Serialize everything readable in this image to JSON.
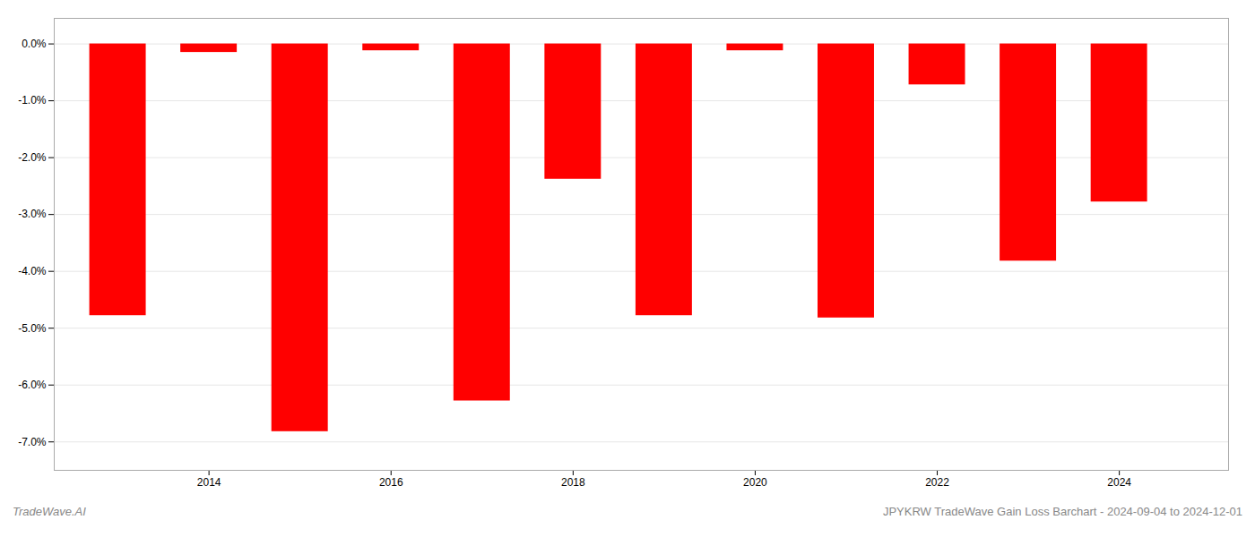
{
  "chart_data": {
    "type": "bar",
    "x": [
      2013,
      2014,
      2015,
      2016,
      2017,
      2018,
      2019,
      2020,
      2021,
      2022,
      2023,
      2024
    ],
    "values": [
      -4.78,
      -0.15,
      -6.82,
      -0.12,
      -6.28,
      -2.38,
      -4.78,
      -0.12,
      -4.82,
      -0.72,
      -3.82,
      -2.78
    ],
    "color": "#ff0000",
    "xlim": [
      2012.3,
      2025.2
    ],
    "xticks": [
      2014,
      2016,
      2018,
      2020,
      2022,
      2024
    ],
    "ylim": [
      -7.5,
      0.45
    ],
    "yticks": [
      {
        "value": 0.0,
        "label": "0.0%"
      },
      {
        "value": -1.0,
        "label": "-1.0%"
      },
      {
        "value": -2.0,
        "label": "-2.0%"
      },
      {
        "value": -3.0,
        "label": "-3.0%"
      },
      {
        "value": -4.0,
        "label": "-4.0%"
      },
      {
        "value": -5.0,
        "label": "-5.0%"
      },
      {
        "value": -6.0,
        "label": "-6.0%"
      },
      {
        "value": -7.0,
        "label": "-7.0%"
      }
    ],
    "grid": true,
    "annotations": [
      "TradeWave.AI",
      "JPYKRW TradeWave Gain Loss Barchart - 2024-09-04 to 2024-12-01"
    ]
  }
}
